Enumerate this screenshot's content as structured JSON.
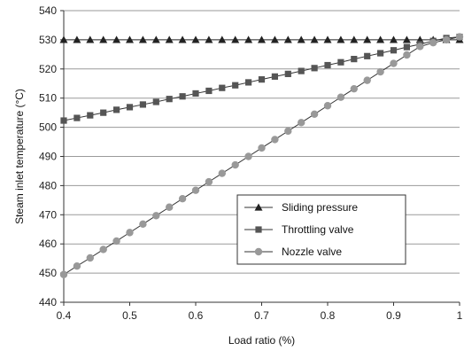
{
  "chart_data": {
    "type": "line",
    "title": "",
    "xlabel": "Load ratio (%)",
    "ylabel": "Steam inlet temperature (°C)",
    "xlim": [
      0.4,
      1.0
    ],
    "ylim": [
      440,
      540
    ],
    "xticks": [
      "0.4",
      "0.5",
      "0.6",
      "0.7",
      "0.8",
      "0.9",
      "1"
    ],
    "yticks": [
      "440",
      "450",
      "460",
      "470",
      "480",
      "490",
      "500",
      "510",
      "520",
      "530",
      "540"
    ],
    "grid": "horizontal",
    "legend_position": "center-right",
    "series": [
      {
        "name": "Sliding pressure",
        "marker": "triangle",
        "color": "#222222",
        "x": [
          0.4,
          0.42,
          0.44,
          0.46,
          0.48,
          0.5,
          0.52,
          0.54,
          0.56,
          0.58,
          0.6,
          0.62,
          0.64,
          0.66,
          0.68,
          0.7,
          0.72,
          0.74,
          0.76,
          0.78,
          0.8,
          0.82,
          0.84,
          0.86,
          0.88,
          0.9,
          0.92,
          0.94,
          0.96,
          0.98,
          1.0
        ],
        "y": [
          530,
          530,
          530,
          530,
          530,
          530,
          530,
          530,
          530,
          530,
          530,
          530,
          530,
          530,
          530,
          530,
          530,
          530,
          530,
          530,
          530,
          530,
          530,
          530,
          530,
          530,
          530,
          530,
          530,
          530,
          530
        ]
      },
      {
        "name": "Throttling valve",
        "marker": "square",
        "color": "#555555",
        "x": [
          0.4,
          0.42,
          0.44,
          0.46,
          0.48,
          0.5,
          0.52,
          0.54,
          0.56,
          0.58,
          0.6,
          0.62,
          0.64,
          0.66,
          0.68,
          0.7,
          0.72,
          0.74,
          0.76,
          0.78,
          0.8,
          0.82,
          0.84,
          0.86,
          0.88,
          0.9,
          0.92,
          0.94,
          0.96,
          0.98,
          1.0
        ],
        "y": [
          502.3,
          503.2,
          504.1,
          505.0,
          506.0,
          506.9,
          507.8,
          508.7,
          509.7,
          510.6,
          511.6,
          512.5,
          513.5,
          514.4,
          515.4,
          516.4,
          517.4,
          518.3,
          519.3,
          520.3,
          521.3,
          522.3,
          523.4,
          524.4,
          525.4,
          526.4,
          527.5,
          528.5,
          529.6,
          530.6,
          531.0
        ]
      },
      {
        "name": "Nozzle valve",
        "marker": "circle",
        "color": "#999999",
        "x": [
          0.4,
          0.42,
          0.44,
          0.46,
          0.48,
          0.5,
          0.52,
          0.54,
          0.56,
          0.58,
          0.6,
          0.62,
          0.64,
          0.66,
          0.68,
          0.7,
          0.72,
          0.74,
          0.76,
          0.78,
          0.8,
          0.82,
          0.84,
          0.86,
          0.88,
          0.9,
          0.92,
          0.94,
          0.96,
          0.98,
          1.0
        ],
        "y": [
          449.5,
          452.4,
          455.2,
          458.1,
          461.0,
          463.9,
          466.8,
          469.7,
          472.6,
          475.5,
          478.4,
          481.3,
          484.2,
          487.1,
          490.0,
          492.9,
          495.8,
          498.7,
          501.6,
          504.5,
          507.4,
          510.3,
          513.2,
          516.1,
          519.0,
          521.9,
          524.8,
          527.7,
          529.0,
          530.0,
          531.0
        ]
      }
    ]
  }
}
